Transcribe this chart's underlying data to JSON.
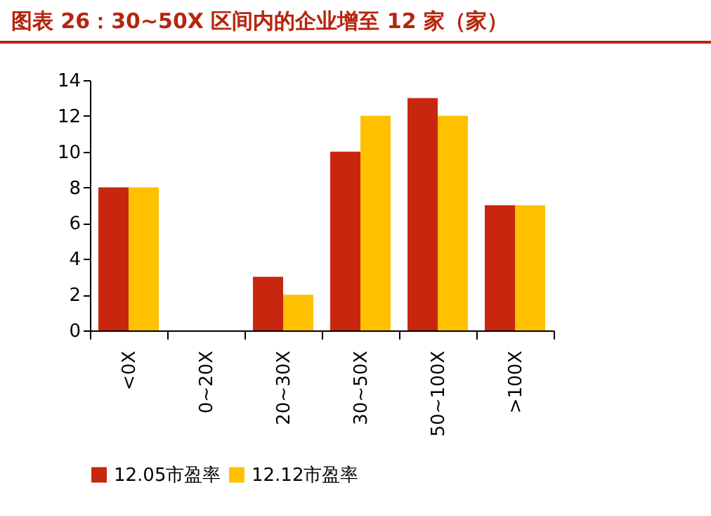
{
  "chart_data": {
    "type": "bar",
    "title": "图表 26：30~50X 区间内的企业增至 12 家（家）",
    "categories": [
      "<0X",
      "0~20X",
      "20~30X",
      "30~50X",
      "50~100X",
      ">100X"
    ],
    "series": [
      {
        "name": "12.05市盈率",
        "color": "#c8260f",
        "values": [
          8,
          0,
          3,
          10,
          13,
          7
        ]
      },
      {
        "name": "12.12市盈率",
        "color": "#ffc000",
        "values": [
          8,
          0,
          2,
          12,
          12,
          7
        ]
      }
    ],
    "ylim": [
      0,
      14
    ],
    "yticks": [
      0,
      2,
      4,
      6,
      8,
      10,
      12,
      14
    ],
    "grid": false,
    "legend": "bottom"
  }
}
